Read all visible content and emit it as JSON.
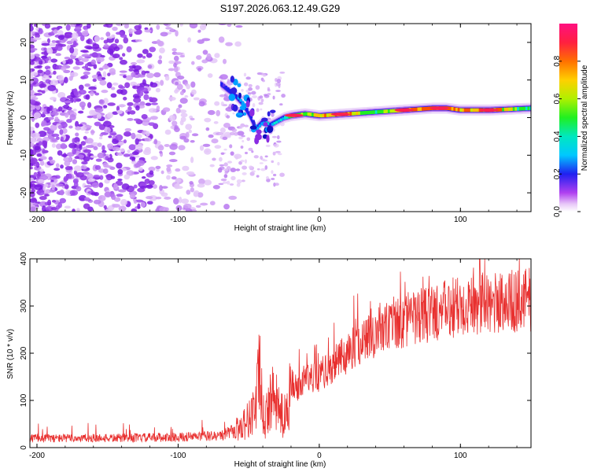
{
  "page_title": "S197.2026.063.12.49.G29",
  "colors": {
    "axis": "#000000",
    "snr_line": "#e8302f",
    "scatter": "#8a2be2"
  },
  "chart_data": [
    {
      "type": "heatmap",
      "title": "S197.2026.063.12.49.G29",
      "xlabel": "Height of straight line (km)",
      "ylabel": "Frequency (Hz)",
      "xlim": [
        -205,
        150
      ],
      "ylim": [
        -25,
        25
      ],
      "xticks": [
        -200,
        -100,
        0,
        100
      ],
      "yticks": [
        -20,
        -10,
        0,
        10,
        20
      ],
      "xtick_labels": [
        "-200",
        "-100",
        "0",
        "100"
      ],
      "ytick_labels": [
        "-20",
        "-10",
        "0",
        "10",
        "20"
      ],
      "colorbar": {
        "label": "Normalized spectral amplitude",
        "range": [
          0,
          1
        ],
        "ticks": [
          0.0,
          0.2,
          0.4,
          0.6,
          0.8
        ],
        "tick_labels": [
          "0.0",
          "0.2",
          "0.4",
          "0.6",
          "0.8"
        ]
      },
      "ridge": {
        "x": [
          -70,
          -60,
          -55,
          -50,
          -45,
          -40,
          -35,
          -30,
          -25,
          -20,
          -10,
          0,
          20,
          40,
          60,
          80,
          90,
          100,
          120,
          150
        ],
        "freq": [
          9,
          6,
          4,
          1,
          -3,
          -1,
          -2,
          -1,
          0,
          0.5,
          1,
          0.5,
          1,
          1.5,
          2,
          2.5,
          2.5,
          2,
          2,
          2.5
        ],
        "amplitude": [
          0.3,
          0.35,
          0.4,
          0.3,
          0.4,
          0.45,
          0.4,
          0.45,
          0.5,
          0.6,
          0.65,
          0.75,
          0.85,
          0.55,
          0.9,
          0.95,
          0.9,
          0.8,
          0.85,
          0.5
        ]
      }
    },
    {
      "type": "line",
      "xlabel": "Height of straight line (km)",
      "ylabel": "SNR (10 * v/v)",
      "xlim": [
        -205,
        150
      ],
      "ylim": [
        0,
        400
      ],
      "xticks": [
        -200,
        -100,
        0,
        100
      ],
      "yticks": [
        0,
        100,
        200,
        300,
        400
      ],
      "xtick_labels": [
        "-200",
        "-100",
        "0",
        "100"
      ],
      "ytick_labels": [
        "0",
        "100",
        "200",
        "300",
        "400"
      ],
      "series": [
        {
          "name": "SNR",
          "x": [
            -205,
            -150,
            -100,
            -70,
            -60,
            -50,
            -45,
            -42,
            -40,
            -38,
            -35,
            -30,
            -25,
            -20,
            -15,
            -10,
            0,
            10,
            20,
            30,
            40,
            50,
            60,
            70,
            80,
            90,
            100,
            110,
            120,
            130,
            140,
            150
          ],
          "y": [
            20,
            20,
            22,
            25,
            35,
            60,
            90,
            160,
            70,
            55,
            110,
            90,
            60,
            140,
            120,
            150,
            150,
            175,
            200,
            225,
            245,
            255,
            265,
            275,
            285,
            290,
            300,
            305,
            305,
            310,
            310,
            315
          ]
        }
      ]
    }
  ]
}
